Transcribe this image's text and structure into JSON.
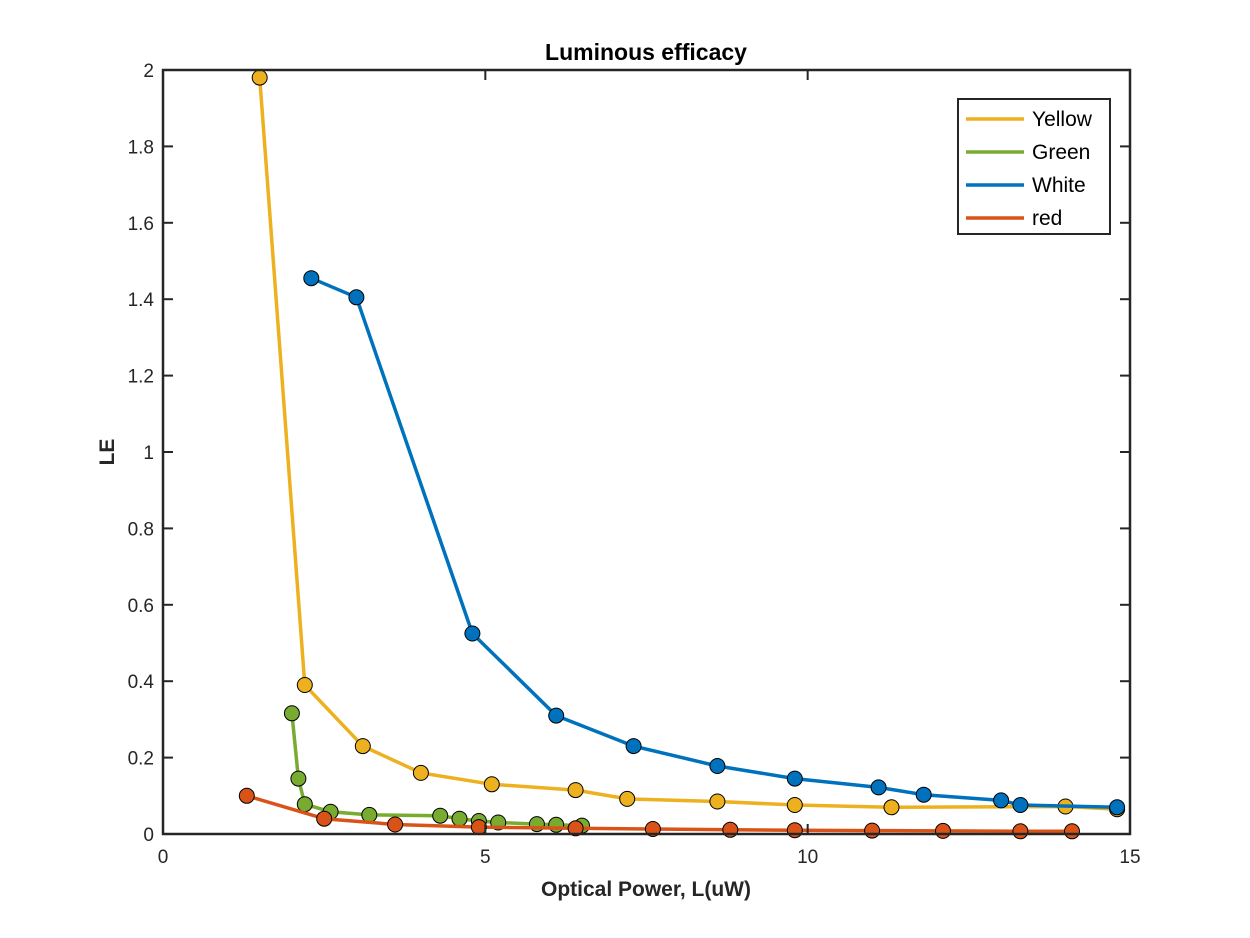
{
  "chart_data": {
    "type": "line",
    "title": "Luminous efficacy",
    "xlabel": "Optical Power, L(uW)",
    "ylabel": "LE",
    "xlim": [
      0,
      15
    ],
    "ylim": [
      0,
      2
    ],
    "xticks": [
      0,
      5,
      10,
      15
    ],
    "yticks": [
      0,
      0.2,
      0.4,
      0.6,
      0.8,
      1,
      1.2,
      1.4,
      1.6,
      1.8,
      2
    ],
    "grid": false,
    "box": true,
    "legend_position": "top-right",
    "marker": "circle",
    "series": [
      {
        "name": "Yellow",
        "color": "#EDB120",
        "x": [
          1.5,
          2.2,
          3.1,
          4.0,
          5.1,
          6.4,
          7.2,
          8.6,
          9.8,
          11.3,
          14.0,
          14.8
        ],
        "y": [
          1.98,
          0.39,
          0.23,
          0.16,
          0.13,
          0.115,
          0.092,
          0.085,
          0.076,
          0.07,
          0.072,
          0.065
        ]
      },
      {
        "name": "Green",
        "color": "#77AC30",
        "x": [
          2.0,
          2.1,
          2.2,
          2.6,
          3.2,
          4.3,
          4.6,
          4.9,
          5.2,
          5.8,
          6.1,
          6.5
        ],
        "y": [
          0.316,
          0.145,
          0.078,
          0.058,
          0.05,
          0.048,
          0.04,
          0.034,
          0.03,
          0.026,
          0.024,
          0.022
        ]
      },
      {
        "name": "White",
        "color": "#0072BD",
        "x": [
          2.3,
          3.0,
          4.8,
          6.1,
          7.3,
          8.6,
          9.8,
          11.1,
          11.8,
          13.0,
          13.3,
          14.8
        ],
        "y": [
          1.455,
          1.405,
          0.525,
          0.31,
          0.23,
          0.178,
          0.145,
          0.122,
          0.103,
          0.088,
          0.076,
          0.07
        ]
      },
      {
        "name": "red",
        "color": "#D95319",
        "x": [
          1.3,
          2.5,
          3.6,
          4.9,
          6.4,
          7.6,
          8.8,
          9.8,
          11.0,
          12.1,
          13.3,
          14.1
        ],
        "y": [
          0.1,
          0.04,
          0.025,
          0.018,
          0.015,
          0.013,
          0.011,
          0.01,
          0.009,
          0.008,
          0.007,
          0.007
        ]
      }
    ]
  }
}
